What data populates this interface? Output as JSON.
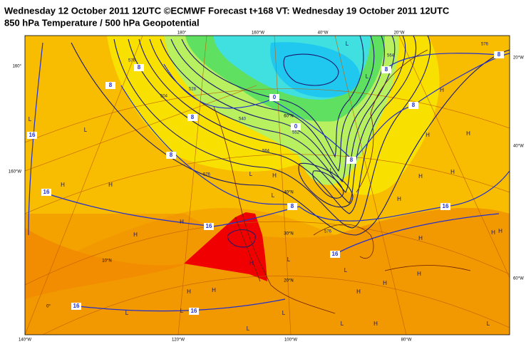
{
  "header": {
    "title": "Wednesday 12 October 2011 12UTC ©ECMWF Forecast t+168 VT: Wednesday 19 October 2011 12UTC",
    "subtitle": "850 hPa Temperature / 500 hPa Geopotential"
  },
  "map": {
    "longitude_labels": [
      "140°W",
      "120°W",
      "100°W",
      "80°W",
      "180°",
      "160°W",
      "40°W",
      "20°W",
      "160°",
      "160°W",
      "20°W",
      "40°W",
      "60°W"
    ],
    "latitude_labels": [
      "60°N",
      "40°N",
      "30°N",
      "20°N",
      "10°N",
      "0°"
    ],
    "temperature_labels": [
      "16",
      "16",
      "16",
      "16",
      "16",
      "16",
      "16",
      "8",
      "8",
      "8",
      "8",
      "8",
      "8",
      "8",
      "8",
      "8",
      "0",
      "0"
    ],
    "geopotential_labels": [
      "576",
      "564",
      "552",
      "540",
      "528",
      "504",
      "576",
      "564",
      "576",
      "576"
    ],
    "pressure_centres": [
      "L",
      "L",
      "H",
      "H",
      "H",
      "H",
      "H",
      "H",
      "L",
      "L",
      "L",
      "L",
      "H",
      "H",
      "H",
      "H",
      "H",
      "H",
      "H",
      "H",
      "H",
      "H",
      "H",
      "L",
      "H",
      "L",
      "H",
      "L",
      "L",
      "L",
      "L",
      "L",
      "H",
      "L",
      "H",
      "L"
    ]
  }
}
